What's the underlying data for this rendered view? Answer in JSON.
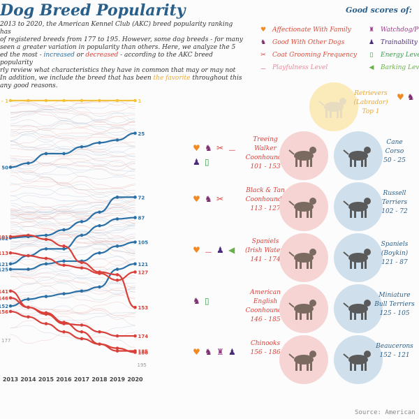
{
  "title": "Dog Breed Popularity",
  "intro": {
    "p1": "2013 to 2020, the American Kennel Club (AKC) breed popularity ranking has",
    "p2": "of registered breeds from 177 to 195. However, some dog breeds - for many",
    "p3": "seen a greater variation in popularity than others. Here, we analyze the 5",
    "p4a": "ed the most - ",
    "increased": "increased",
    "p4b": " or ",
    "decreased": "decreased",
    "p4c": " - according to the AKC breed popularity",
    "p5": "rly review what characteristics they have in common that may or may not",
    "p6": "In addition, we include the breed that has been ",
    "favorite": "the favorite",
    "p6b": " throughout this",
    "p7": "any good reasons."
  },
  "good_scores": {
    "title": "Good scores of:",
    "items": [
      {
        "label": "Affectionate With Family",
        "icon": "heart-icon",
        "color": "#f08a24"
      },
      {
        "label": "Good With Other Dogs",
        "icon": "dogs-icon",
        "color": "#7a2a6a"
      },
      {
        "label": "Coat Grooming Frequency",
        "icon": "scissors-icon",
        "color": "#d8403a"
      },
      {
        "label": "Playfulness Level",
        "icon": "bone-icon",
        "color": "#e88a9a"
      },
      {
        "label": "Watchdog/P",
        "icon": "watchdog-icon",
        "color": "#9a3a8a"
      },
      {
        "label": "Trainability L",
        "icon": "trainability-icon",
        "color": "#4a2a7a"
      },
      {
        "label": "Energy Level",
        "icon": "battery-icon",
        "color": "#3a9a4a"
      },
      {
        "label": "Barking Lev",
        "icon": "speaker-icon",
        "color": "#6ab04a"
      }
    ]
  },
  "chart_data": {
    "type": "line",
    "x": [
      "2013",
      "2014",
      "2015",
      "2016",
      "2017",
      "2018",
      "2019",
      "2020"
    ],
    "y_axis": "rank (1 at top)",
    "series": [
      {
        "name": "Retrievers (Labrador)",
        "group": "favorite",
        "color": "#f3c23c",
        "start_label": "1 - 1",
        "end_label": "1",
        "values": [
          1,
          1,
          1,
          1,
          1,
          1,
          1,
          1
        ]
      },
      {
        "name": "Cane Corso",
        "group": "increased",
        "color": "#2a6fa5",
        "start_label": "50",
        "end_label": "25",
        "values": [
          50,
          47,
          40,
          40,
          35,
          32,
          30,
          25
        ]
      },
      {
        "name": "Russell Terriers",
        "group": "increased",
        "color": "#2a6fa5",
        "start_label": "102",
        "end_label": "72",
        "values": [
          102,
          101,
          100,
          96,
          90,
          83,
          72,
          72
        ]
      },
      {
        "name": "Spaniels (Boykin)",
        "group": "increased",
        "color": "#2a6fa5",
        "start_label": "121",
        "end_label": "87",
        "values": [
          121,
          115,
          110,
          110,
          100,
          93,
          88,
          87
        ]
      },
      {
        "name": "Miniature Bull Terriers",
        "group": "increased",
        "color": "#2a6fa5",
        "start_label": "125",
        "end_label": "105",
        "values": [
          125,
          125,
          121,
          119,
          119,
          113,
          108,
          105
        ]
      },
      {
        "name": "Beaucerons",
        "group": "increased",
        "color": "#2a6fa5",
        "start_label": "152",
        "end_label": "121",
        "values": [
          152,
          147,
          145,
          143,
          141,
          138,
          125,
          121
        ]
      },
      {
        "name": "Treeing Walker Coonhounds",
        "group": "decreased",
        "color": "#d8403a",
        "start_label": "101",
        "end_label": "153",
        "values": [
          101,
          100,
          103,
          108,
          120,
          127,
          129,
          153
        ]
      },
      {
        "name": "Black & Tan Coonhounds",
        "group": "decreased",
        "color": "#d8403a",
        "start_label": "113",
        "end_label": "127",
        "values": [
          113,
          115,
          117,
          122,
          124,
          128,
          133,
          127
        ]
      },
      {
        "name": "Spaniels (Irish Water)",
        "group": "decreased",
        "color": "#d8403a",
        "start_label": "141",
        "end_label": "174",
        "values": [
          141,
          153,
          158,
          165,
          166,
          171,
          174,
          174
        ]
      },
      {
        "name": "American English Coonhounds",
        "group": "decreased",
        "color": "#d8403a",
        "start_label": "146",
        "end_label": "185",
        "values": [
          146,
          153,
          157,
          164,
          171,
          180,
          185,
          185
        ]
      },
      {
        "name": "Chinooks",
        "group": "decreased",
        "color": "#d8403a",
        "start_label": "156",
        "end_label": "186",
        "values": [
          156,
          160,
          165,
          171,
          176,
          180,
          183,
          186
        ]
      }
    ],
    "background_range": {
      "start_min": 1,
      "start_max": 177,
      "end_max": 195,
      "start_label": "177",
      "end_label": "195"
    },
    "ylim": [
      1,
      195
    ]
  },
  "pairs": [
    {
      "left": {
        "name1": "Treeing",
        "name2": "Walker",
        "name3": "Coonhounds",
        "range": "101 - 153",
        "icons": [
          "heart-icon",
          "dogs-icon",
          "scissors-icon",
          "bone-icon",
          "trainability-icon",
          "battery-icon"
        ]
      },
      "right": {
        "name1": "Cane",
        "name2": "Corso",
        "name3": "",
        "range": "50 - 25"
      }
    },
    {
      "left": {
        "name1": "Black & Tan",
        "name2": "Coonhounds",
        "name3": "",
        "range": "113 - 127",
        "icons": [
          "heart-icon",
          "dogs-icon",
          "scissors-icon"
        ]
      },
      "right": {
        "name1": "Russell",
        "name2": "Terriers",
        "name3": "",
        "range": "102 - 72"
      }
    },
    {
      "left": {
        "name1": "Spaniels",
        "name2": "(Irish Water)",
        "name3": "",
        "range": "141 - 174",
        "icons": [
          "heart-icon",
          "bone-icon",
          "trainability-icon",
          "speaker-icon"
        ]
      },
      "right": {
        "name1": "Spaniels",
        "name2": "(Boykin)",
        "name3": "",
        "range": "121 - 87"
      }
    },
    {
      "left": {
        "name1": "American",
        "name2": "English",
        "name3": "Coonhounds",
        "range": "146 - 185",
        "icons": [
          "dogs-icon",
          "battery-icon"
        ]
      },
      "right": {
        "name1": "Miniature",
        "name2": "Bull Terriers",
        "name3": "",
        "range": "125 - 105"
      }
    },
    {
      "left": {
        "name1": "Chinooks",
        "name2": "",
        "name3": "",
        "range": "156 - 186",
        "icons": [
          "heart-icon",
          "dogs-icon",
          "watchdog-icon",
          "trainability-icon"
        ]
      },
      "right": {
        "name1": "Beaucerons",
        "name2": "",
        "name3": "",
        "range": "152 - 121"
      }
    }
  ],
  "favorite": {
    "name1": "Retrievers",
    "name2": "(Labrador)",
    "name3": "Top 1"
  },
  "source": "Source: American K"
}
